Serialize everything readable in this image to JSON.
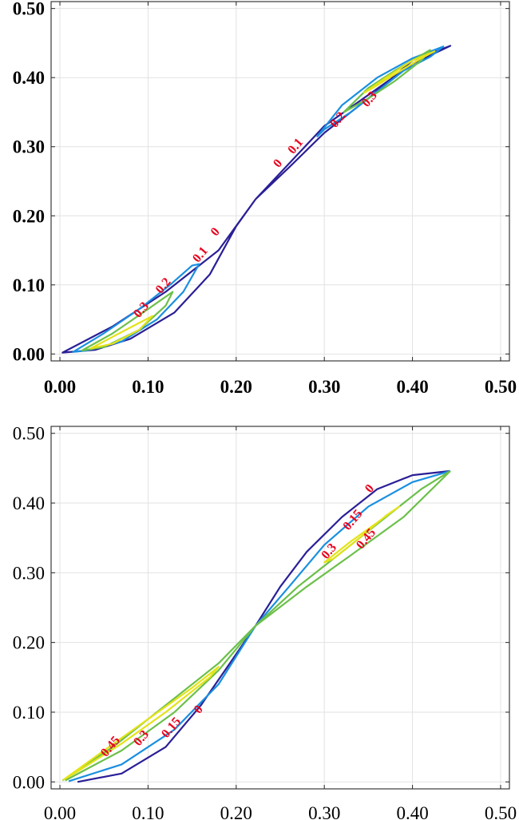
{
  "chart_data": [
    {
      "type": "line",
      "subtype": "contour",
      "title": "",
      "xlabel": "",
      "ylabel": "",
      "xlim": [
        -0.01,
        0.51
      ],
      "ylim": [
        -0.01,
        0.51
      ],
      "grid": true,
      "tick_font_weight": "bold",
      "x_ticks": [
        "0.00",
        "0.10",
        "0.20",
        "0.30",
        "0.40",
        "0.50"
      ],
      "y_ticks": [
        "0.00",
        "0.10",
        "0.20",
        "0.30",
        "0.40",
        "0.50"
      ],
      "x_tick_values": [
        0,
        0.1,
        0.2,
        0.3,
        0.4,
        0.5
      ],
      "y_tick_values": [
        0,
        0.1,
        0.2,
        0.3,
        0.4,
        0.5
      ],
      "series": [
        {
          "level": "0",
          "color": "#2a1f96",
          "closed": true,
          "points": [
            [
              0.003,
              0.002
            ],
            [
              0.06,
              0.04
            ],
            [
              0.12,
              0.09
            ],
            [
              0.18,
              0.15
            ],
            [
              0.222,
              0.224
            ],
            [
              0.26,
              0.27
            ],
            [
              0.3,
              0.32
            ],
            [
              0.35,
              0.37
            ],
            [
              0.4,
              0.425
            ],
            [
              0.443,
              0.446
            ],
            [
              0.4,
              0.42
            ],
            [
              0.3,
              0.33
            ],
            [
              0.222,
              0.224
            ],
            [
              0.2,
              0.185
            ],
            [
              0.17,
              0.115
            ],
            [
              0.13,
              0.06
            ],
            [
              0.08,
              0.022
            ],
            [
              0.04,
              0.006
            ],
            [
              0.003,
              0.002
            ]
          ]
        },
        {
          "level": "0.1",
          "color": "#1a8fe0",
          "closed": true,
          "points": [
            [
              0.015,
              0.003
            ],
            [
              0.05,
              0.03
            ],
            [
              0.09,
              0.065
            ],
            [
              0.125,
              0.1
            ],
            [
              0.15,
              0.128
            ],
            [
              0.158,
              0.13
            ],
            [
              0.14,
              0.09
            ],
            [
              0.11,
              0.05
            ],
            [
              0.07,
              0.018
            ],
            [
              0.03,
              0.005
            ],
            [
              0.015,
              0.003
            ]
          ]
        },
        {
          "level": "0.1",
          "color": "#1a8fe0",
          "closed": true,
          "points": [
            [
              0.292,
              0.315
            ],
            [
              0.32,
              0.36
            ],
            [
              0.36,
              0.4
            ],
            [
              0.4,
              0.428
            ],
            [
              0.435,
              0.445
            ],
            [
              0.42,
              0.43
            ],
            [
              0.39,
              0.41
            ],
            [
              0.36,
              0.38
            ],
            [
              0.33,
              0.35
            ],
            [
              0.3,
              0.325
            ],
            [
              0.292,
              0.315
            ]
          ]
        },
        {
          "level": "0.2",
          "color": "#6cc04a",
          "closed": true,
          "points": [
            [
              0.025,
              0.005
            ],
            [
              0.06,
              0.03
            ],
            [
              0.1,
              0.065
            ],
            [
              0.128,
              0.09
            ],
            [
              0.12,
              0.07
            ],
            [
              0.09,
              0.035
            ],
            [
              0.05,
              0.01
            ],
            [
              0.025,
              0.005
            ]
          ]
        },
        {
          "level": "0.2",
          "color": "#6cc04a",
          "closed": true,
          "points": [
            [
              0.322,
              0.35
            ],
            [
              0.35,
              0.385
            ],
            [
              0.38,
              0.41
            ],
            [
              0.42,
              0.44
            ],
            [
              0.41,
              0.425
            ],
            [
              0.38,
              0.395
            ],
            [
              0.35,
              0.37
            ],
            [
              0.322,
              0.35
            ]
          ]
        },
        {
          "level": "0.3",
          "color": "#e3e31a",
          "closed": true,
          "points": [
            [
              0.035,
              0.008
            ],
            [
              0.06,
              0.025
            ],
            [
              0.09,
              0.045
            ],
            [
              0.105,
              0.055
            ],
            [
              0.09,
              0.035
            ],
            [
              0.06,
              0.015
            ],
            [
              0.035,
              0.008
            ]
          ]
        },
        {
          "level": "0.3",
          "color": "#e3e31a",
          "closed": true,
          "points": [
            [
              0.345,
              0.378
            ],
            [
              0.37,
              0.4
            ],
            [
              0.4,
              0.425
            ],
            [
              0.425,
              0.438
            ],
            [
              0.41,
              0.428
            ],
            [
              0.38,
              0.405
            ],
            [
              0.355,
              0.385
            ],
            [
              0.345,
              0.378
            ]
          ]
        }
      ],
      "labels": [
        {
          "text": "0",
          "x": 0.248,
          "y": 0.275
        },
        {
          "text": "0.1",
          "x": 0.268,
          "y": 0.3
        },
        {
          "text": "0.2",
          "x": 0.316,
          "y": 0.338
        },
        {
          "text": "0.3",
          "x": 0.352,
          "y": 0.368
        },
        {
          "text": "0",
          "x": 0.177,
          "y": 0.176
        },
        {
          "text": "0.1",
          "x": 0.16,
          "y": 0.143
        },
        {
          "text": "0.2",
          "x": 0.118,
          "y": 0.098
        },
        {
          "text": "0.3",
          "x": 0.093,
          "y": 0.063
        }
      ]
    },
    {
      "type": "line",
      "subtype": "contour",
      "title": "",
      "xlabel": "",
      "ylabel": "",
      "xlim": [
        -0.01,
        0.51
      ],
      "ylim": [
        -0.01,
        0.51
      ],
      "grid": true,
      "tick_font_weight": "normal",
      "x_ticks": [
        "0.00",
        "0.10",
        "0.20",
        "0.30",
        "0.40",
        "0.50"
      ],
      "y_ticks": [
        "0.00",
        "0.10",
        "0.20",
        "0.30",
        "0.40",
        "0.50"
      ],
      "x_tick_values": [
        0,
        0.1,
        0.2,
        0.3,
        0.4,
        0.5
      ],
      "y_tick_values": [
        0,
        0.1,
        0.2,
        0.3,
        0.4,
        0.5
      ],
      "series": [
        {
          "level": "0",
          "color": "#2a1f96",
          "closed": false,
          "points": [
            [
              0.02,
              0.0
            ],
            [
              0.07,
              0.012
            ],
            [
              0.12,
              0.05
            ],
            [
              0.16,
              0.11
            ],
            [
              0.19,
              0.165
            ],
            [
              0.222,
              0.224
            ],
            [
              0.25,
              0.28
            ],
            [
              0.28,
              0.33
            ],
            [
              0.32,
              0.38
            ],
            [
              0.36,
              0.42
            ],
            [
              0.4,
              0.44
            ],
            [
              0.443,
              0.446
            ]
          ]
        },
        {
          "level": "0.15",
          "color": "#1a8fe0",
          "closed": false,
          "points": [
            [
              0.01,
              0.001
            ],
            [
              0.07,
              0.025
            ],
            [
              0.13,
              0.075
            ],
            [
              0.18,
              0.14
            ],
            [
              0.222,
              0.224
            ],
            [
              0.26,
              0.28
            ],
            [
              0.3,
              0.34
            ],
            [
              0.35,
              0.395
            ],
            [
              0.4,
              0.43
            ],
            [
              0.443,
              0.446
            ]
          ]
        },
        {
          "level": "0.3",
          "color": "#6cc04a",
          "closed": false,
          "points": [
            [
              0.006,
              0.002
            ],
            [
              0.07,
              0.045
            ],
            [
              0.13,
              0.1
            ],
            [
              0.18,
              0.16
            ],
            [
              0.222,
              0.224
            ],
            [
              0.27,
              0.28
            ],
            [
              0.32,
              0.33
            ],
            [
              0.37,
              0.38
            ],
            [
              0.41,
              0.42
            ],
            [
              0.443,
              0.446
            ]
          ]
        },
        {
          "level": "0.3",
          "color": "#6cc04a",
          "closed": false,
          "points": [
            [
              0.003,
              0.002
            ],
            [
              0.06,
              0.05
            ],
            [
              0.12,
              0.11
            ],
            [
              0.18,
              0.17
            ],
            [
              0.222,
              0.224
            ],
            [
              0.28,
              0.28
            ],
            [
              0.33,
              0.325
            ],
            [
              0.39,
              0.38
            ],
            [
              0.443,
              0.446
            ]
          ]
        },
        {
          "level": "0.45",
          "color": "#e3e31a",
          "closed": true,
          "points": [
            [
              0.004,
              0.003
            ],
            [
              0.05,
              0.045
            ],
            [
              0.1,
              0.09
            ],
            [
              0.15,
              0.135
            ],
            [
              0.18,
              0.165
            ],
            [
              0.17,
              0.15
            ],
            [
              0.12,
              0.1
            ],
            [
              0.07,
              0.055
            ],
            [
              0.02,
              0.015
            ],
            [
              0.004,
              0.003
            ]
          ]
        },
        {
          "level": "0.45",
          "color": "#e3e31a",
          "closed": true,
          "points": [
            [
              0.3,
              0.315
            ],
            [
              0.33,
              0.345
            ],
            [
              0.36,
              0.372
            ],
            [
              0.385,
              0.395
            ],
            [
              0.37,
              0.382
            ],
            [
              0.34,
              0.35
            ],
            [
              0.31,
              0.32
            ],
            [
              0.3,
              0.315
            ]
          ]
        }
      ],
      "labels": [
        {
          "text": "0",
          "x": 0.352,
          "y": 0.42
        },
        {
          "text": "0.15",
          "x": 0.333,
          "y": 0.375
        },
        {
          "text": "0.3",
          "x": 0.306,
          "y": 0.33
        },
        {
          "text": "0.45",
          "x": 0.348,
          "y": 0.348
        },
        {
          "text": "0",
          "x": 0.158,
          "y": 0.103
        },
        {
          "text": "0.15",
          "x": 0.127,
          "y": 0.077
        },
        {
          "text": "0.3",
          "x": 0.093,
          "y": 0.062
        },
        {
          "text": "0.45",
          "x": 0.058,
          "y": 0.05
        }
      ]
    }
  ]
}
